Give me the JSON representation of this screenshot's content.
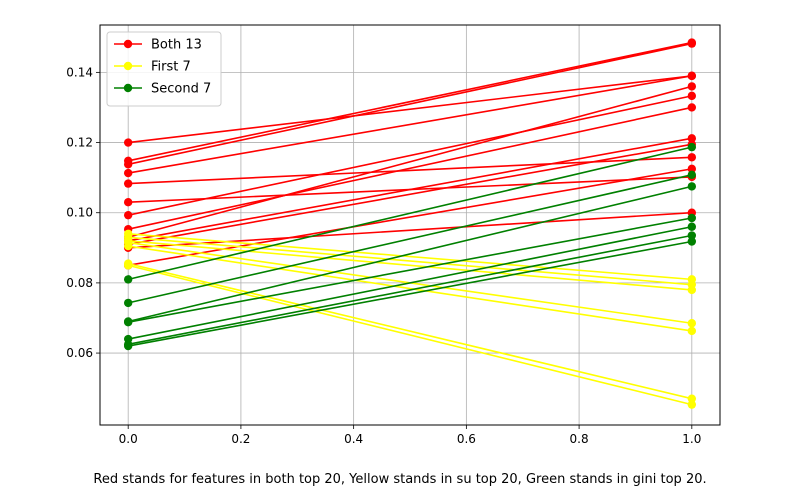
{
  "chart_data": {
    "type": "line",
    "caption": "Red stands for features in both top 20, Yellow stands in su top 20, Green stands in gini top 20.",
    "xlim": [
      -0.05,
      1.05
    ],
    "ylim": [
      0.0395,
      0.1535
    ],
    "xticks": [
      0.0,
      0.2,
      0.4,
      0.6,
      0.8,
      1.0
    ],
    "xtick_labels": [
      "0.0",
      "0.2",
      "0.4",
      "0.6",
      "0.8",
      "1.0"
    ],
    "yticks": [
      0.06,
      0.08,
      0.1,
      0.12,
      0.14
    ],
    "ytick_labels": [
      "0.06",
      "0.08",
      "0.10",
      "0.12",
      "0.14"
    ],
    "grid": true,
    "legend_position": "top-left",
    "series": [
      {
        "name": "Both 13",
        "color": "#ff0000",
        "lines": [
          [
            0.12,
            0.139
          ],
          [
            0.1148,
            0.1485
          ],
          [
            0.1138,
            0.1482
          ],
          [
            0.1113,
            0.139
          ],
          [
            0.1083,
            0.1158
          ],
          [
            0.103,
            0.1102
          ],
          [
            0.0993,
            0.1333
          ],
          [
            0.0953,
            0.13
          ],
          [
            0.093,
            0.136
          ],
          [
            0.092,
            0.1212
          ],
          [
            0.091,
            0.1195
          ],
          [
            0.09,
            0.1
          ],
          [
            0.085,
            0.1125
          ]
        ]
      },
      {
        "name": "First 7",
        "color": "#ffff00",
        "lines": [
          [
            0.094,
            0.081
          ],
          [
            0.093,
            0.0795
          ],
          [
            0.092,
            0.078
          ],
          [
            0.0915,
            0.0685
          ],
          [
            0.0905,
            0.0663
          ],
          [
            0.0855,
            0.047
          ],
          [
            0.085,
            0.0453
          ]
        ]
      },
      {
        "name": "Second 7",
        "color": "#008000",
        "lines": [
          [
            0.081,
            0.1187
          ],
          [
            0.0743,
            0.1108
          ],
          [
            0.069,
            0.1075
          ],
          [
            0.0688,
            0.0985
          ],
          [
            0.064,
            0.096
          ],
          [
            0.0625,
            0.0935
          ],
          [
            0.062,
            0.0918
          ]
        ]
      }
    ]
  }
}
